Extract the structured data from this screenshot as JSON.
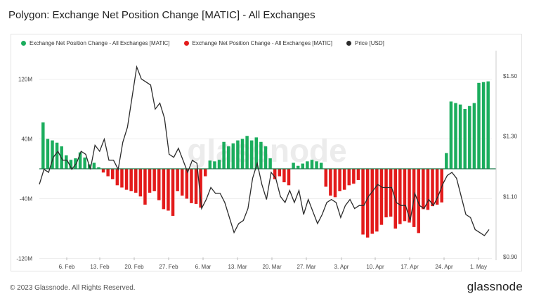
{
  "title": "Polygon: Exchange Net Position Change [MATIC] - All Exchanges",
  "watermark": "glassnode",
  "footer": {
    "copyright": "© 2023 Glassnode. All Rights Reserved.",
    "brand": "glassnode"
  },
  "colors": {
    "positive": "#1bad5d",
    "negative": "#e31b1b",
    "price": "#2b2b2b",
    "zero": "#1b7a4a",
    "grid": "#eeeeee"
  },
  "legend": [
    {
      "label": "Exchange Net Position Change - All Exchanges [MATIC]",
      "color": "#1bad5d"
    },
    {
      "label": "Exchange Net Position Change - All Exchanges [MATIC]",
      "color": "#e31b1b"
    },
    {
      "label": "Price [USD]",
      "color": "#2b2b2b"
    }
  ],
  "chart_data": {
    "type": "bar",
    "x_ticks": [
      "6. Feb",
      "13. Feb",
      "20. Feb",
      "27. Feb",
      "6. Mar",
      "13. Mar",
      "20. Mar",
      "27. Mar",
      "3. Apr",
      "10. Apr",
      "17. Apr",
      "24. Apr",
      "1. May"
    ],
    "y_left_ticks": [
      "120M",
      "40M",
      "-40M",
      "-120M"
    ],
    "y_left_tick_values": [
      120,
      40,
      -40,
      -120
    ],
    "y_right_ticks": [
      "$1.50",
      "$1.30",
      "$1.10",
      "$0.90"
    ],
    "y_right_tick_values": [
      1.5,
      1.3,
      1.1,
      0.9
    ],
    "ylim_left": [
      -120,
      120
    ],
    "ylim_right": [
      0.9,
      1.5
    ],
    "series": [
      {
        "name": "Exchange Net Position Change - All Exchanges [MATIC]",
        "unit": "M MATIC",
        "values": [
          62,
          40,
          38,
          35,
          30,
          18,
          12,
          14,
          22,
          15,
          6,
          8,
          2,
          -5,
          -10,
          -14,
          -22,
          -25,
          -28,
          -30,
          -32,
          -37,
          -48,
          -32,
          -30,
          -42,
          -54,
          -56,
          -63,
          -30,
          -36,
          -40,
          -46,
          -47,
          -52,
          -10,
          11,
          10,
          12,
          36,
          30,
          34,
          38,
          40,
          44,
          38,
          42,
          36,
          30,
          14,
          -14,
          -10,
          -18,
          -22,
          8,
          4,
          7,
          10,
          12,
          10,
          8,
          -24,
          -36,
          -38,
          -30,
          -28,
          -22,
          -20,
          -15,
          -88,
          -92,
          -87,
          -84,
          -75,
          -65,
          -64,
          -80,
          -74,
          -70,
          -72,
          -78,
          -86,
          -54,
          -55,
          -50,
          -48,
          -45,
          21,
          90,
          88,
          86,
          80,
          84,
          88,
          115,
          116,
          117
        ]
      },
      {
        "name": "Price [USD]",
        "unit": "USD",
        "values": [
          1.14,
          1.19,
          1.18,
          1.23,
          1.25,
          1.22,
          1.22,
          1.19,
          1.21,
          1.25,
          1.24,
          1.19,
          1.27,
          1.25,
          1.29,
          1.22,
          1.22,
          1.19,
          1.28,
          1.33,
          1.43,
          1.53,
          1.49,
          1.48,
          1.47,
          1.39,
          1.41,
          1.36,
          1.24,
          1.23,
          1.26,
          1.22,
          1.18,
          1.22,
          1.21,
          1.06,
          1.09,
          1.13,
          1.11,
          1.11,
          1.08,
          1.03,
          0.98,
          1.01,
          1.02,
          1.06,
          1.16,
          1.21,
          1.14,
          1.09,
          1.18,
          1.16,
          1.1,
          1.08,
          1.12,
          1.08,
          1.12,
          1.04,
          1.09,
          1.05,
          1.01,
          1.04,
          1.08,
          1.09,
          1.08,
          1.03,
          1.07,
          1.09,
          1.06,
          1.07,
          1.07,
          1.1,
          1.12,
          1.14,
          1.13,
          1.13,
          1.13,
          1.08,
          1.07,
          1.07,
          1.02,
          1.11,
          1.07,
          1.06,
          1.09,
          1.07,
          1.1,
          1.14,
          1.17,
          1.18,
          1.16,
          1.1,
          1.04,
          1.03,
          0.99,
          0.98,
          0.97,
          0.99
        ]
      }
    ],
    "price_x_start_index": 0
  }
}
